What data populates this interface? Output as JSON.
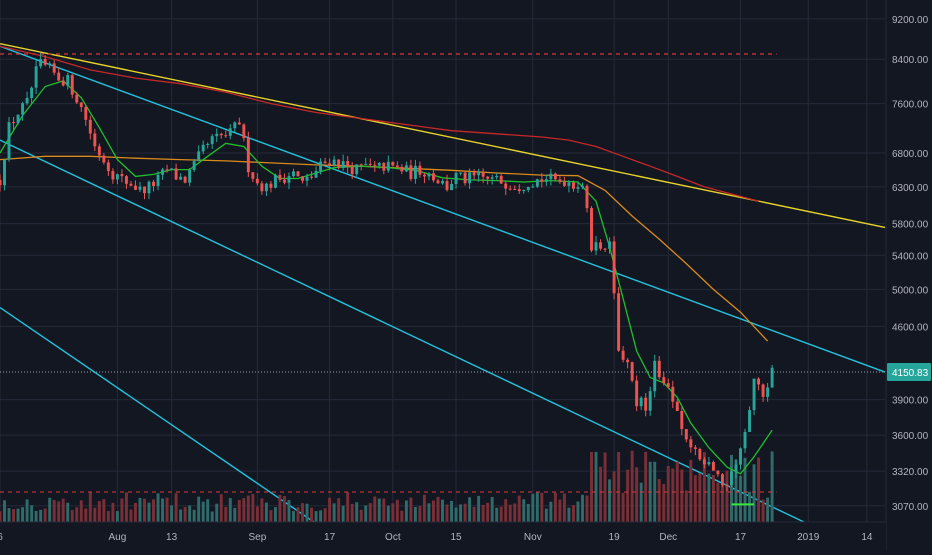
{
  "colors": {
    "background": "#131722",
    "grid": "#242a38",
    "axis_text": "#b2b5be",
    "up": "#26a69a",
    "down": "#ef5350",
    "up_volume": "#2f6b6a",
    "down_volume": "#7a2f36",
    "ma_fast": "#1fbf2c",
    "ma_mid": "#d88a1c",
    "ma_slow": "#c62828",
    "trendline_yellow": "#e6d22a",
    "channel": "#22c3dd",
    "resistance_dashed": "#d83a3a",
    "price_label_bg": "#26a69a",
    "price_label_text": "#ffffff",
    "support_marker": "#39e639"
  },
  "chart_data": {
    "type": "candlestick",
    "price_scale": "log",
    "ylim": [
      2960,
      9600
    ],
    "grid": true,
    "y_ticks": [
      {
        "value": 9200,
        "label": "9200.00"
      },
      {
        "value": 8400,
        "label": "8400.00"
      },
      {
        "value": 7600,
        "label": "7600.00"
      },
      {
        "value": 6800,
        "label": "6800.00"
      },
      {
        "value": 6300,
        "label": "6300.00"
      },
      {
        "value": 5800,
        "label": "5800.00"
      },
      {
        "value": 5400,
        "label": "5400.00"
      },
      {
        "value": 5000,
        "label": "5000.00"
      },
      {
        "value": 4600,
        "label": "4600.00"
      },
      {
        "value": 3900,
        "label": "3900.00"
      },
      {
        "value": 3600,
        "label": "3600.00"
      },
      {
        "value": 3320,
        "label": "3320.00"
      },
      {
        "value": 3070,
        "label": "3070.00"
      }
    ],
    "current_price": {
      "value": 4150.83,
      "label": "4150.83"
    },
    "x_ticks": [
      {
        "day": 0,
        "label": "6"
      },
      {
        "day": 26,
        "label": "Aug"
      },
      {
        "day": 38,
        "label": "13"
      },
      {
        "day": 57,
        "label": "Sep"
      },
      {
        "day": 73,
        "label": "17"
      },
      {
        "day": 87,
        "label": "Oct"
      },
      {
        "day": 101,
        "label": "15"
      },
      {
        "day": 118,
        "label": "Nov"
      },
      {
        "day": 136,
        "label": "19"
      },
      {
        "day": 148,
        "label": "Dec"
      },
      {
        "day": 164,
        "label": "17"
      },
      {
        "day": 179,
        "label": "2019"
      },
      {
        "day": 192,
        "label": "14"
      }
    ],
    "x_range": [
      0,
      196
    ],
    "keyframes": [
      [
        0,
        6400
      ],
      [
        2,
        7200
      ],
      [
        4,
        7450
      ],
      [
        6,
        7600
      ],
      [
        8,
        8150
      ],
      [
        9,
        8300
      ],
      [
        11,
        8200
      ],
      [
        13,
        8050
      ],
      [
        15,
        8000
      ],
      [
        17,
        7700
      ],
      [
        19,
        7350
      ],
      [
        21,
        6900
      ],
      [
        23,
        6700
      ],
      [
        25,
        6500
      ],
      [
        27,
        6400
      ],
      [
        29,
        6350
      ],
      [
        31,
        6250
      ],
      [
        33,
        6300
      ],
      [
        35,
        6400
      ],
      [
        37,
        6550
      ],
      [
        39,
        6450
      ],
      [
        41,
        6400
      ],
      [
        43,
        6600
      ],
      [
        45,
        6850
      ],
      [
        47,
        7000
      ],
      [
        49,
        7050
      ],
      [
        51,
        7100
      ],
      [
        53,
        7300
      ],
      [
        55,
        6600
      ],
      [
        57,
        6350
      ],
      [
        59,
        6300
      ],
      [
        61,
        6400
      ],
      [
        63,
        6450
      ],
      [
        65,
        6500
      ],
      [
        67,
        6350
      ],
      [
        69,
        6450
      ],
      [
        71,
        6600
      ],
      [
        73,
        6700
      ],
      [
        75,
        6650
      ],
      [
        77,
        6600
      ],
      [
        79,
        6550
      ],
      [
        81,
        6600
      ],
      [
        83,
        6550
      ],
      [
        85,
        6600
      ],
      [
        87,
        6580
      ],
      [
        89,
        6550
      ],
      [
        91,
        6500
      ],
      [
        93,
        6550
      ],
      [
        95,
        6500
      ],
      [
        97,
        6400
      ],
      [
        99,
        6300
      ],
      [
        101,
        6450
      ],
      [
        103,
        6400
      ],
      [
        105,
        6430
      ],
      [
        107,
        6420
      ],
      [
        109,
        6400
      ],
      [
        111,
        6380
      ],
      [
        113,
        6350
      ],
      [
        115,
        6320
      ],
      [
        117,
        6380
      ],
      [
        119,
        6400
      ],
      [
        121,
        6420
      ],
      [
        123,
        6380
      ],
      [
        125,
        6400
      ],
      [
        127,
        6350
      ],
      [
        129,
        6350
      ],
      [
        131,
        5500
      ],
      [
        133,
        5550
      ],
      [
        135,
        5500
      ],
      [
        137,
        4400
      ],
      [
        139,
        4200
      ],
      [
        141,
        3900
      ],
      [
        143,
        3850
      ],
      [
        145,
        4200
      ],
      [
        147,
        4100
      ],
      [
        149,
        3900
      ],
      [
        151,
        3600
      ],
      [
        153,
        3500
      ],
      [
        155,
        3400
      ],
      [
        157,
        3420
      ],
      [
        159,
        3300
      ],
      [
        161,
        3220
      ],
      [
        163,
        3400
      ],
      [
        165,
        3650
      ],
      [
        167,
        4050
      ],
      [
        169,
        3950
      ],
      [
        171,
        4150
      ]
    ],
    "ma_fast": [
      [
        0,
        6800
      ],
      [
        5,
        7400
      ],
      [
        10,
        7900
      ],
      [
        14,
        8000
      ],
      [
        18,
        7700
      ],
      [
        22,
        7200
      ],
      [
        26,
        6700
      ],
      [
        30,
        6450
      ],
      [
        34,
        6480
      ],
      [
        38,
        6550
      ],
      [
        42,
        6550
      ],
      [
        46,
        6750
      ],
      [
        50,
        6950
      ],
      [
        54,
        6900
      ],
      [
        58,
        6600
      ],
      [
        62,
        6420
      ],
      [
        66,
        6420
      ],
      [
        70,
        6500
      ],
      [
        74,
        6580
      ],
      [
        80,
        6600
      ],
      [
        86,
        6580
      ],
      [
        92,
        6540
      ],
      [
        98,
        6430
      ],
      [
        104,
        6400
      ],
      [
        110,
        6390
      ],
      [
        116,
        6370
      ],
      [
        122,
        6390
      ],
      [
        128,
        6370
      ],
      [
        132,
        6100
      ],
      [
        135,
        5500
      ],
      [
        138,
        4900
      ],
      [
        141,
        4350
      ],
      [
        144,
        4100
      ],
      [
        147,
        4050
      ],
      [
        150,
        3920
      ],
      [
        153,
        3700
      ],
      [
        157,
        3500
      ],
      [
        161,
        3350
      ],
      [
        164,
        3300
      ],
      [
        167,
        3430
      ],
      [
        171,
        3640
      ]
    ],
    "ma_mid": [
      [
        0,
        6700
      ],
      [
        10,
        6750
      ],
      [
        20,
        6750
      ],
      [
        30,
        6720
      ],
      [
        40,
        6700
      ],
      [
        50,
        6680
      ],
      [
        60,
        6650
      ],
      [
        70,
        6620
      ],
      [
        80,
        6600
      ],
      [
        90,
        6570
      ],
      [
        100,
        6540
      ],
      [
        110,
        6500
      ],
      [
        120,
        6470
      ],
      [
        128,
        6460
      ],
      [
        134,
        6250
      ],
      [
        140,
        5900
      ],
      [
        146,
        5600
      ],
      [
        152,
        5300
      ],
      [
        158,
        5000
      ],
      [
        164,
        4750
      ],
      [
        170,
        4450
      ]
    ],
    "ma_slow": [
      [
        0,
        8650
      ],
      [
        10,
        8450
      ],
      [
        20,
        8200
      ],
      [
        30,
        8050
      ],
      [
        40,
        7950
      ],
      [
        50,
        7800
      ],
      [
        60,
        7600
      ],
      [
        70,
        7450
      ],
      [
        80,
        7350
      ],
      [
        90,
        7250
      ],
      [
        100,
        7150
      ],
      [
        110,
        7100
      ],
      [
        120,
        7050
      ],
      [
        126,
        7000
      ],
      [
        132,
        6900
      ],
      [
        138,
        6750
      ],
      [
        144,
        6600
      ],
      [
        150,
        6450
      ],
      [
        156,
        6300
      ],
      [
        162,
        6200
      ],
      [
        168,
        6100
      ]
    ],
    "trendlines": [
      {
        "name": "yellow",
        "from": [
          0,
          8700
        ],
        "to": [
          196,
          5750
        ]
      },
      {
        "name": "channel-upper",
        "from": [
          0,
          8650
        ],
        "to": [
          196,
          4150
        ]
      },
      {
        "name": "channel-lower",
        "from": [
          0,
          7000
        ],
        "to": [
          183,
          2890
        ]
      },
      {
        "name": "channel-far",
        "from": [
          0,
          4800
        ],
        "to": [
          70,
          2950
        ]
      }
    ],
    "resistance_dashed": {
      "value": 8500,
      "from": 0,
      "to": 172
    },
    "volume_dashed_from": 0,
    "volume_dashed_to": 172
  }
}
